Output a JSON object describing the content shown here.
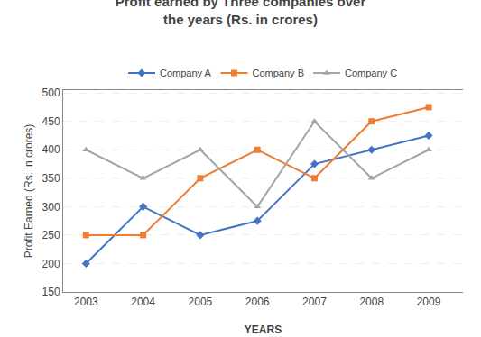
{
  "chart_data": {
    "type": "line",
    "title": "Profit earned by Three companies over\nthe years (Rs. in crores)",
    "x_label": "YEARS",
    "y_label": "Profit Earned (Rs. in crores)",
    "x": [
      2003,
      2004,
      2005,
      2006,
      2007,
      2008,
      2009
    ],
    "series": [
      {
        "name": "Company A",
        "color": "#4472C4",
        "marker": "diamond",
        "values": [
          200,
          300,
          250,
          275,
          375,
          400,
          425
        ]
      },
      {
        "name": "Company B",
        "color": "#ED7D31",
        "marker": "square",
        "values": [
          250,
          250,
          350,
          400,
          350,
          450,
          475
        ]
      },
      {
        "name": "Company C",
        "color": "#A5A5A5",
        "marker": "triangle-up",
        "values": [
          400,
          350,
          400,
          300,
          450,
          350,
          400
        ]
      }
    ],
    "xlim": [
      2002.6,
      2009.6
    ],
    "xticks": [
      2003,
      2004,
      2005,
      2006,
      2007,
      2008,
      2009
    ],
    "ylim": [
      150,
      505
    ],
    "yticks": [
      150,
      200,
      250,
      300,
      350,
      400,
      450,
      500
    ],
    "grid": true,
    "legend": "top"
  }
}
